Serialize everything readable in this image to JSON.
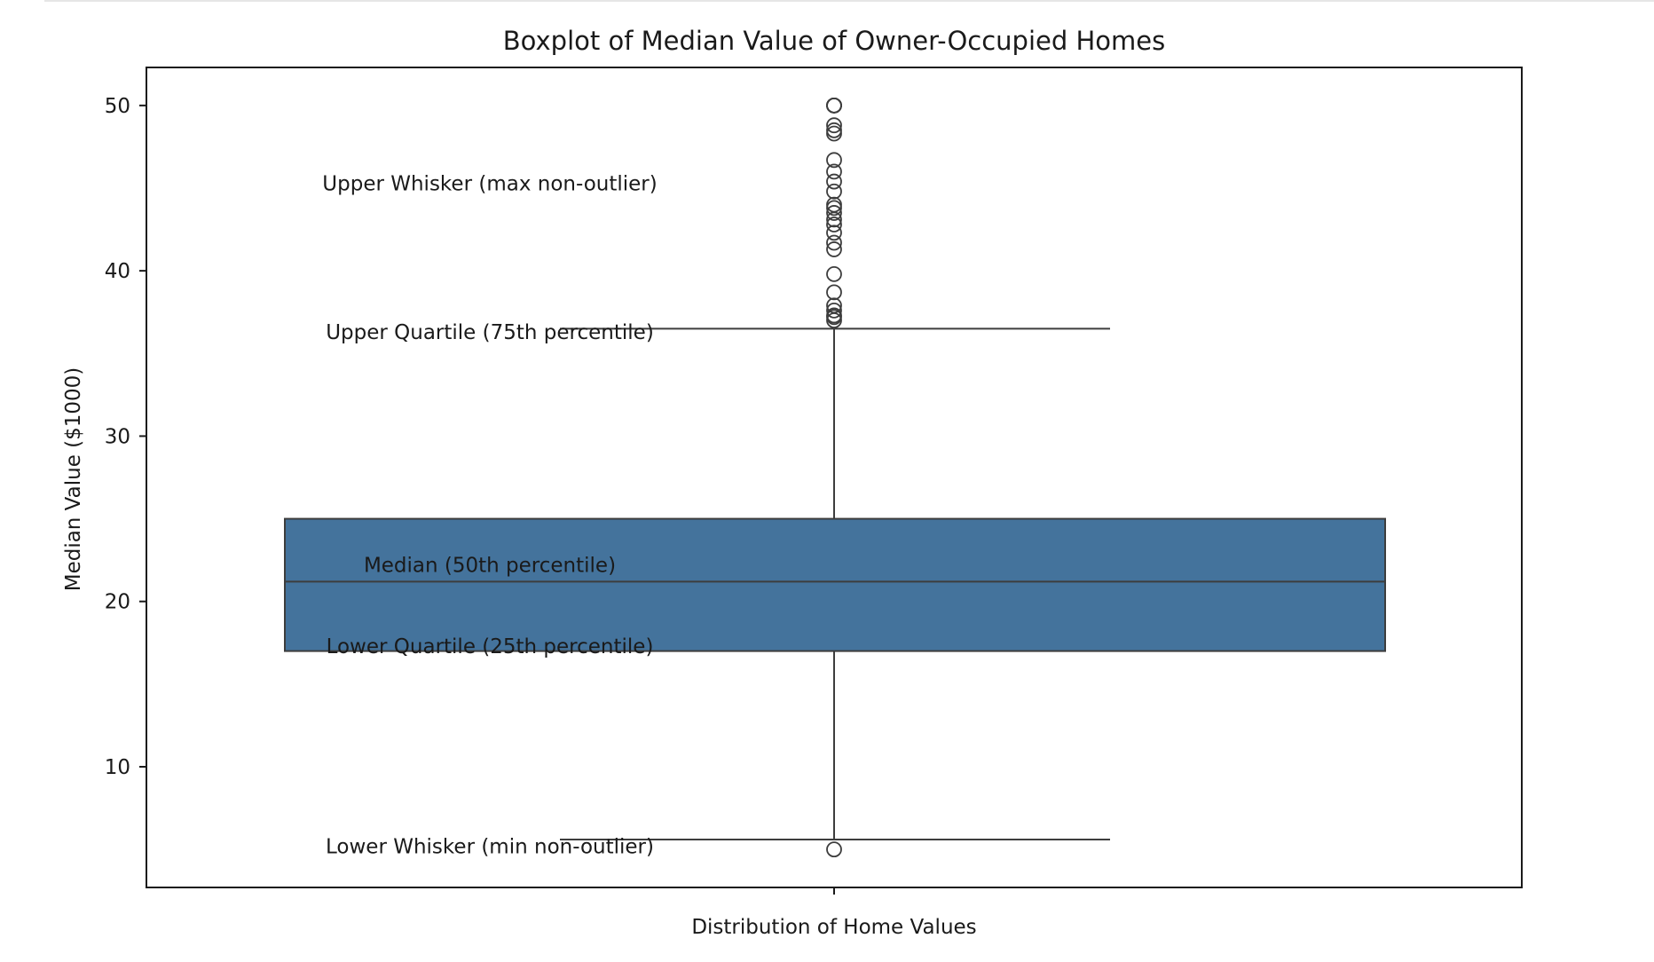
{
  "chart_data": {
    "type": "boxplot",
    "title": "Boxplot of Median Value of Owner-Occupied Homes",
    "xlabel": "Distribution of Home Values",
    "ylabel": "Median Value ($1000)",
    "ylim": [
      2.7,
      52.3
    ],
    "yticks": [
      10,
      20,
      30,
      40,
      50
    ],
    "grid": false,
    "box_color": "#44739c",
    "stats": {
      "lower_whisker": 5.6,
      "q1": 17.0,
      "median": 21.2,
      "q3": 25.0,
      "upper_whisker": 36.5
    },
    "outliers": [
      50,
      50,
      50,
      50,
      50,
      48.8,
      48.5,
      48.3,
      46.7,
      46.0,
      45.4,
      44.8,
      44.0,
      43.8,
      43.5,
      43.1,
      42.8,
      42.3,
      41.7,
      41.3,
      39.8,
      38.7,
      37.9,
      37.6,
      37.3,
      37.2,
      37.0,
      5.0
    ],
    "annotations": [
      {
        "label": "Upper Whisker (max non-outlier)",
        "y": 45.3
      },
      {
        "label": "Upper Quartile (75th percentile)",
        "y": 36.3
      },
      {
        "label": "Median (50th percentile)",
        "y": 22.2
      },
      {
        "label": "Lower Quartile (25th percentile)",
        "y": 17.3
      },
      {
        "label": "Lower Whisker (min non-outlier)",
        "y": 5.2
      }
    ]
  }
}
